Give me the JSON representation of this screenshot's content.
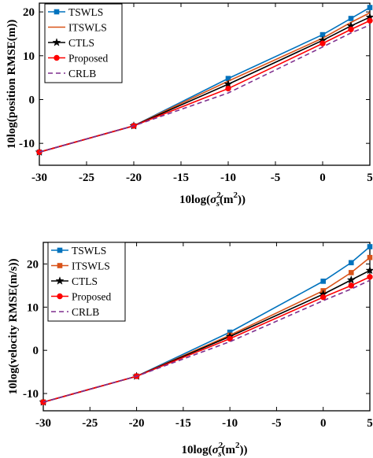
{
  "chart_data": [
    {
      "type": "line",
      "xlabel_main": "10log(",
      "xlabel_sigma": "σ",
      "xlabel_sub": "s",
      "xlabel_sup": "2",
      "xlabel_tail": "(m",
      "xlabel_sup2": "2",
      "xlabel_end": "))",
      "ylabel": "10log(position RMSE(m))",
      "xlim": [
        -30,
        5
      ],
      "ylim": [
        -15,
        22
      ],
      "xticks": [
        -30,
        -25,
        -20,
        -15,
        -10,
        -5,
        0,
        5
      ],
      "yticks": [
        -10,
        0,
        10,
        20
      ],
      "x": [
        -30,
        -20,
        -10,
        0,
        3,
        5
      ],
      "legend_position": "top-left",
      "series": [
        {
          "name": "TSWLS",
          "color": "#0072BD",
          "marker": "square",
          "dash": false,
          "values": [
            -12,
            -6,
            4.8,
            14.8,
            18.5,
            21
          ]
        },
        {
          "name": "ITSWLS",
          "color": "#D95319",
          "marker": "none",
          "dash": false,
          "values": [
            -12,
            -6,
            4.2,
            14.0,
            17.6,
            19.8
          ]
        },
        {
          "name": "CTLS",
          "color": "#000000",
          "marker": "star",
          "dash": false,
          "values": [
            -12,
            -6,
            3.5,
            13.5,
            16.8,
            18.8
          ]
        },
        {
          "name": "Proposed",
          "color": "#FF0000",
          "marker": "circle",
          "dash": false,
          "values": [
            -12,
            -6,
            2.5,
            12.8,
            16.0,
            18.0
          ]
        },
        {
          "name": "CRLB",
          "color": "#7E2F8E",
          "marker": "none",
          "dash": true,
          "values": [
            -12,
            -6,
            1.5,
            12.0,
            15.2,
            17.0
          ]
        }
      ]
    },
    {
      "type": "line",
      "xlabel_main": "10log(",
      "xlabel_sigma": "σ",
      "xlabel_sub": "s",
      "xlabel_sup": "2",
      "xlabel_tail": "(m",
      "xlabel_sup2": "2",
      "xlabel_end": "))",
      "ylabel": "10log(velocity RMSE(m/s))",
      "xlim": [
        -30,
        5
      ],
      "ylim": [
        -14,
        25
      ],
      "xticks": [
        -30,
        -25,
        -20,
        -15,
        -10,
        -5,
        0,
        5
      ],
      "yticks": [
        -10,
        0,
        10,
        20
      ],
      "x": [
        -30,
        -20,
        -10,
        0,
        3,
        5
      ],
      "legend_position": "top-left",
      "series": [
        {
          "name": "TSWLS",
          "color": "#0072BD",
          "marker": "square",
          "dash": false,
          "values": [
            -12,
            -6,
            4.2,
            16.0,
            20.3,
            24.0
          ]
        },
        {
          "name": "ITSWLS",
          "color": "#D95319",
          "marker": "square",
          "dash": false,
          "values": [
            -12,
            -6,
            3.5,
            13.8,
            18.0,
            21.5
          ]
        },
        {
          "name": "CTLS",
          "color": "#000000",
          "marker": "star",
          "dash": false,
          "values": [
            -12,
            -6,
            3.2,
            13.0,
            16.3,
            18.5
          ]
        },
        {
          "name": "Proposed",
          "color": "#FF0000",
          "marker": "circle",
          "dash": false,
          "values": [
            -12,
            -6,
            2.7,
            12.3,
            15.0,
            17.0
          ]
        },
        {
          "name": "CRLB",
          "color": "#7E2F8E",
          "marker": "none",
          "dash": true,
          "values": [
            -12,
            -6,
            2.0,
            11.5,
            14.2,
            16.2
          ]
        }
      ]
    }
  ]
}
